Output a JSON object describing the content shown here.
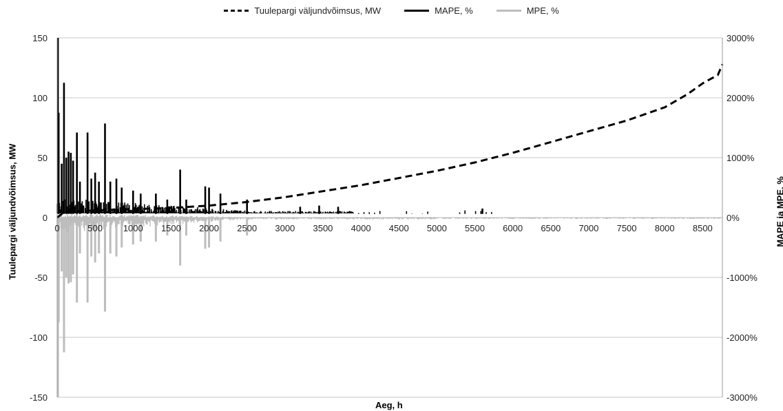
{
  "chart_data": {
    "type": "line",
    "legend": [
      {
        "name": "Tuulepargi väljundvõimsus, MW",
        "style": "dashed",
        "color": "#000000"
      },
      {
        "name": "MAPE, %",
        "style": "solid",
        "color": "#000000"
      },
      {
        "name": "MPE, %",
        "style": "solid",
        "color": "#bdbdbd"
      }
    ],
    "legend_position": "top",
    "xlabel": "Aeg, h",
    "ylabel": "Tuulepargi väljundvõimsus, MW",
    "y2label": "MAPE ja MPE, %",
    "xlim": [
      0,
      8760
    ],
    "ylim": [
      -150,
      150
    ],
    "y2lim": [
      -3000,
      3000
    ],
    "x_ticks": [
      0,
      500,
      1000,
      1500,
      2000,
      2500,
      3000,
      3500,
      4000,
      4500,
      5000,
      5500,
      6000,
      6500,
      7000,
      7500,
      8000,
      8500
    ],
    "y_ticks": [
      -150,
      -100,
      -50,
      0,
      50,
      100,
      150
    ],
    "y2_ticks": [
      "-3000%",
      "-2000%",
      "-1000%",
      "0%",
      "1000%",
      "2000%",
      "3000%"
    ],
    "grid": true,
    "series": [
      {
        "name": "Tuulepargi väljundvõimsus, MW",
        "axis": "left",
        "x": [
          0,
          100,
          500,
          1000,
          1500,
          2000,
          2500,
          3000,
          3500,
          4000,
          4500,
          5000,
          5500,
          6000,
          6500,
          7000,
          7500,
          8000,
          8300,
          8500,
          8700,
          8760
        ],
        "y": [
          0,
          5,
          6,
          7,
          8,
          10,
          13,
          17,
          22,
          27,
          33,
          39,
          46,
          54,
          63,
          72,
          81,
          92,
          103,
          112,
          119,
          128
        ]
      },
      {
        "name": "MAPE, %",
        "axis": "right",
        "spikes": [
          {
            "x": 10,
            "y": 3000
          },
          {
            "x": 20,
            "y": 1750
          },
          {
            "x": 60,
            "y": 900
          },
          {
            "x": 90,
            "y": 2250
          },
          {
            "x": 120,
            "y": 1000
          },
          {
            "x": 150,
            "y": 1100
          },
          {
            "x": 180,
            "y": 1080
          },
          {
            "x": 210,
            "y": 950
          },
          {
            "x": 260,
            "y": 1420
          },
          {
            "x": 300,
            "y": 600
          },
          {
            "x": 400,
            "y": 1420
          },
          {
            "x": 450,
            "y": 650
          },
          {
            "x": 500,
            "y": 750
          },
          {
            "x": 550,
            "y": 600
          },
          {
            "x": 630,
            "y": 1570
          },
          {
            "x": 700,
            "y": 600
          },
          {
            "x": 780,
            "y": 650
          },
          {
            "x": 850,
            "y": 500
          },
          {
            "x": 1000,
            "y": 450
          },
          {
            "x": 1100,
            "y": 400
          },
          {
            "x": 1300,
            "y": 400
          },
          {
            "x": 1450,
            "y": 300
          },
          {
            "x": 1620,
            "y": 800
          },
          {
            "x": 1700,
            "y": 300
          },
          {
            "x": 1950,
            "y": 520
          },
          {
            "x": 2000,
            "y": 500
          },
          {
            "x": 2150,
            "y": 400
          },
          {
            "x": 2500,
            "y": 300
          },
          {
            "x": 3200,
            "y": 180
          },
          {
            "x": 3450,
            "y": 200
          },
          {
            "x": 3700,
            "y": 180
          },
          {
            "x": 5600,
            "y": 150
          }
        ]
      },
      {
        "name": "MPE, %",
        "axis": "right",
        "spikes": [
          {
            "x": 10,
            "y": -3000
          },
          {
            "x": 20,
            "y": -1750
          },
          {
            "x": 60,
            "y": -900
          },
          {
            "x": 90,
            "y": -2250
          },
          {
            "x": 120,
            "y": -1000
          },
          {
            "x": 150,
            "y": -1100
          },
          {
            "x": 180,
            "y": -1080
          },
          {
            "x": 210,
            "y": -950
          },
          {
            "x": 260,
            "y": -1420
          },
          {
            "x": 300,
            "y": -600
          },
          {
            "x": 400,
            "y": -1420
          },
          {
            "x": 450,
            "y": -650
          },
          {
            "x": 500,
            "y": -750
          },
          {
            "x": 550,
            "y": -600
          },
          {
            "x": 630,
            "y": -1570
          },
          {
            "x": 700,
            "y": -600
          },
          {
            "x": 780,
            "y": -650
          },
          {
            "x": 850,
            "y": -500
          },
          {
            "x": 1000,
            "y": -450
          },
          {
            "x": 1100,
            "y": -400
          },
          {
            "x": 1300,
            "y": -400
          },
          {
            "x": 1450,
            "y": -300
          },
          {
            "x": 1620,
            "y": -800
          },
          {
            "x": 1700,
            "y": -300
          },
          {
            "x": 1950,
            "y": -520
          },
          {
            "x": 2000,
            "y": -500
          },
          {
            "x": 2150,
            "y": -400
          },
          {
            "x": 2500,
            "y": -300
          }
        ]
      }
    ]
  }
}
